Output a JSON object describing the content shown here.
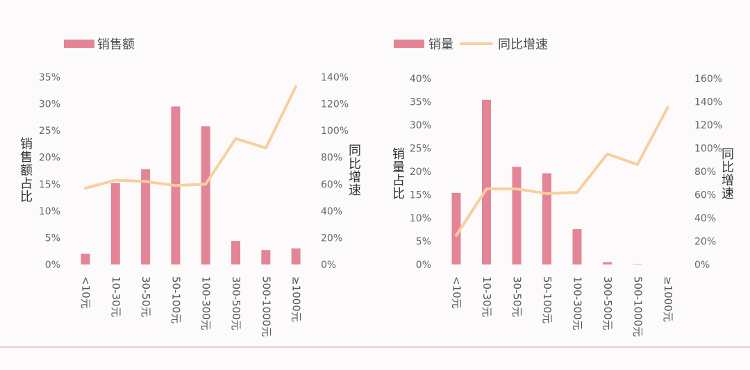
{
  "colors": {
    "bar": "#e38596",
    "line": "#f7cf9e",
    "tick_text": "#666666",
    "bottom_rule": "#ecb8c1"
  },
  "chart_data": [
    {
      "type": "bar",
      "categories": [
        "<10元",
        "10-30元",
        "30-50元",
        "50-100元",
        "100-300元",
        "300-500元",
        "500-1000元",
        "≥1000元"
      ],
      "series": [
        {
          "name": "销售额",
          "type": "bar",
          "axis": "left",
          "values": [
            2.0,
            15.2,
            17.8,
            29.5,
            25.8,
            4.4,
            2.7,
            3.0
          ]
        },
        {
          "name": "",
          "type": "line",
          "axis": "right",
          "values": [
            57,
            63,
            62,
            59,
            60,
            94,
            87,
            133
          ]
        }
      ],
      "legend": [
        "销售额"
      ],
      "ylabel": "销售额占比",
      "y2label": "同比增速",
      "ylim": [
        0,
        35
      ],
      "y_ticks": [
        "0%",
        "5%",
        "10%",
        "15%",
        "20%",
        "25%",
        "30%",
        "35%"
      ],
      "y2lim": [
        0,
        140
      ],
      "y2_ticks": [
        "0%",
        "20%",
        "40%",
        "60%",
        "80%",
        "100%",
        "120%",
        "140%"
      ]
    },
    {
      "type": "bar",
      "categories": [
        "<10元",
        "10-30元",
        "30-50元",
        "50-100元",
        "100-300元",
        "300-500元",
        "500-1000元",
        "≥1000元"
      ],
      "series": [
        {
          "name": "销量",
          "type": "bar",
          "axis": "left",
          "values": [
            15.4,
            35.4,
            21.0,
            19.6,
            7.6,
            0.5,
            0.1,
            0
          ]
        },
        {
          "name": "同比增速",
          "type": "line",
          "axis": "right",
          "values": [
            25,
            65,
            65,
            61,
            62,
            95,
            86,
            135
          ]
        }
      ],
      "legend": [
        "销量",
        "同比增速"
      ],
      "ylabel": "销量占比",
      "y2label": "同比增速",
      "ylim": [
        0,
        40
      ],
      "y_ticks": [
        "0%",
        "5%",
        "10%",
        "15%",
        "20%",
        "25%",
        "30%",
        "35%",
        "40%"
      ],
      "y2lim": [
        0,
        160
      ],
      "y2_ticks": [
        "0%",
        "20%",
        "40%",
        "60%",
        "80%",
        "100%",
        "120%",
        "140%",
        "160%"
      ]
    }
  ]
}
